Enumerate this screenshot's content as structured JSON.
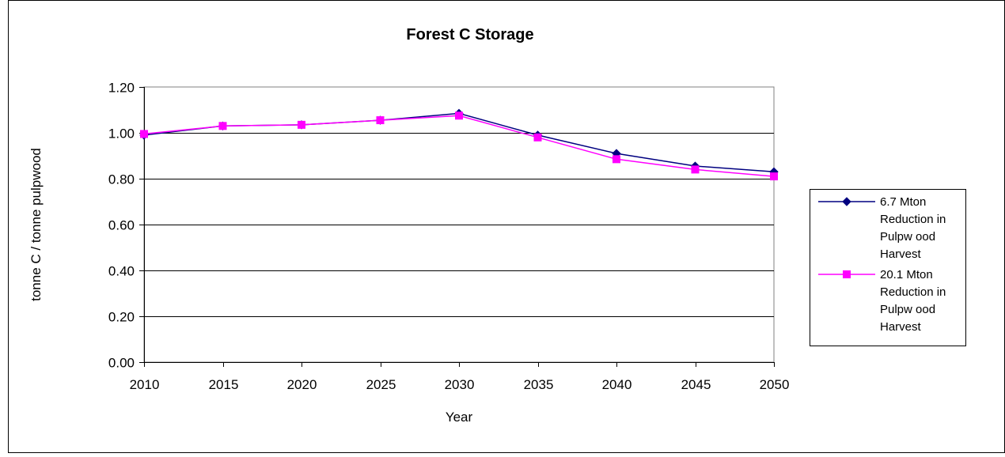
{
  "chart_data": {
    "type": "line",
    "title": "Forest C Storage",
    "xlabel": "Year",
    "ylabel": "tonne C / tonne pulpwood",
    "x": [
      2010,
      2015,
      2020,
      2025,
      2030,
      2035,
      2040,
      2045,
      2050
    ],
    "x_tick_labels": [
      "2010",
      "2015",
      "2020",
      "2025",
      "2030",
      "2035",
      "2040",
      "2045",
      "2050"
    ],
    "y_tick_labels": [
      "0.00",
      "0.20",
      "0.40",
      "0.60",
      "0.80",
      "1.00",
      "1.20"
    ],
    "y_ticks": [
      0,
      0.2,
      0.4,
      0.6,
      0.8,
      1.0,
      1.2
    ],
    "ylim": [
      0,
      1.2
    ],
    "grid": "horizontal",
    "legend_position": "right",
    "series": [
      {
        "name": "6.7 Mton Reduction in Pulpwood Harvest",
        "legend_lines": [
          "6.7 Mton",
          "Reduction in",
          "Pulpw ood",
          "Harvest"
        ],
        "color": "#000080",
        "marker": "diamond",
        "values": [
          0.99,
          1.03,
          1.035,
          1.055,
          1.085,
          0.99,
          0.91,
          0.855,
          0.83
        ]
      },
      {
        "name": "20.1 Mton Reduction in Pulpwood Harvest",
        "legend_lines": [
          "20.1 Mton",
          "Reduction in",
          "Pulpw ood",
          "Harvest"
        ],
        "color": "#ff00ff",
        "marker": "square",
        "values": [
          0.995,
          1.03,
          1.035,
          1.055,
          1.075,
          0.98,
          0.885,
          0.84,
          0.81
        ]
      }
    ]
  }
}
